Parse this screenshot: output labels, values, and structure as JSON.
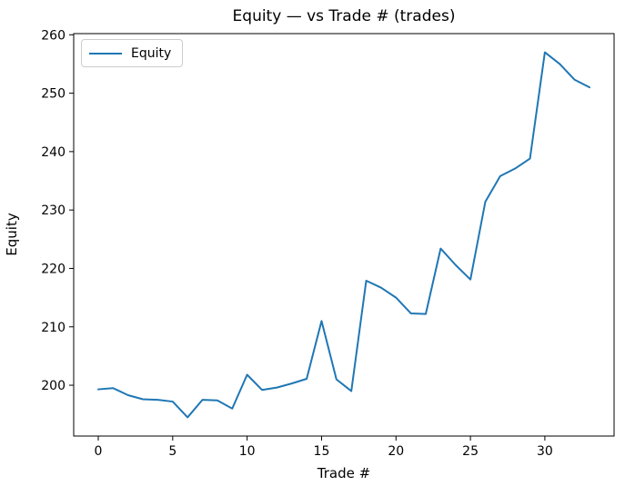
{
  "chart_data": {
    "type": "line",
    "title": "Equity — vs Trade # (trades)",
    "xlabel": "Trade #",
    "ylabel": "Equity",
    "x": [
      0,
      1,
      2,
      3,
      4,
      5,
      6,
      7,
      8,
      9,
      10,
      11,
      12,
      13,
      14,
      15,
      16,
      17,
      18,
      19,
      20,
      21,
      22,
      23,
      24,
      25,
      26,
      27,
      28,
      29,
      30,
      31,
      32,
      33
    ],
    "series": [
      {
        "name": "Equity",
        "color": "#1f77b4",
        "values": [
          199.3,
          199.5,
          198.3,
          197.6,
          197.5,
          197.2,
          194.5,
          197.5,
          197.4,
          196.0,
          201.8,
          199.2,
          199.6,
          200.3,
          201.1,
          211.0,
          201.0,
          199.0,
          217.9,
          216.7,
          215.0,
          212.3,
          212.2,
          223.4,
          220.6,
          218.1,
          231.4,
          235.8,
          237.1,
          238.8,
          257.0,
          255.0,
          252.3,
          251.0
        ]
      }
    ],
    "xlim": [
      -1.65,
      34.65
    ],
    "ylim": [
      191.3,
      260.2
    ],
    "xticks": [
      0,
      5,
      10,
      15,
      20,
      25,
      30
    ],
    "yticks": [
      200,
      210,
      220,
      230,
      240,
      250,
      260
    ],
    "grid": false,
    "legend_position": "upper-left"
  },
  "legend": {
    "entries": [
      "Equity"
    ]
  },
  "colors": {
    "line": "#1f77b4",
    "spine": "#000000",
    "background": "#ffffff",
    "legend_border": "#cccccc"
  }
}
